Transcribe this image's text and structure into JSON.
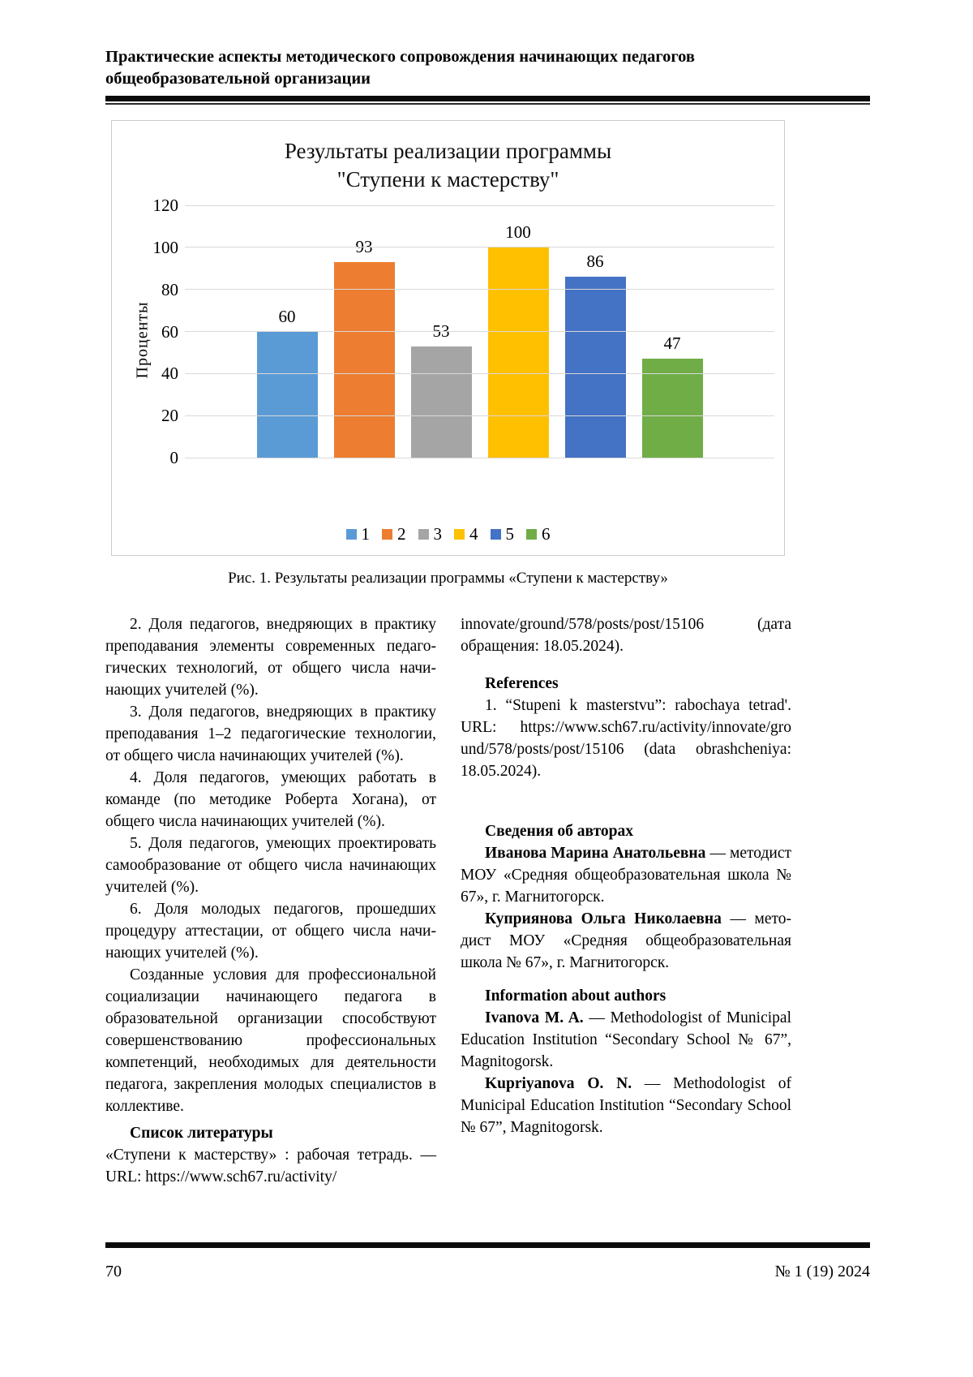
{
  "page": {
    "header_title": "Практические аспекты методического сопровождения начинающих педагогов общеобразовательной организации",
    "footer_page_number": "70",
    "footer_issue": "№ 1 (19) 2024"
  },
  "figure": {
    "caption": "Рис. 1. Результаты реализации программы «Ступени к мастерству»"
  },
  "chart_data": {
    "type": "bar",
    "title_lines": [
      "Результаты реализации программы",
      "\"Ступени к мастерству\""
    ],
    "categories": [
      "1",
      "2",
      "3",
      "4",
      "5",
      "6"
    ],
    "values": [
      60,
      93,
      53,
      100,
      86,
      47
    ],
    "colors": [
      "#5B9BD5",
      "#ED7D31",
      "#A5A5A5",
      "#FFC000",
      "#4472C4",
      "#70AD47"
    ],
    "ylabel": "Проценты",
    "xlabel": "",
    "ylim": [
      0,
      120
    ],
    "ytick_step": 20,
    "grid": true,
    "legend_position": "bottom"
  },
  "left_column": {
    "paragraphs": [
      "2. Доля педагогов, внедряющих в практику преподавания элементы современных педаго­гических технологий, от общего числа начи­нающих учителей (%).",
      "3. Доля педагогов, внедряющих в практику преподавания 1–2 педагогические технологии, от общего числа начинающих учителей (%).",
      "4. Доля педагогов, умеющих работать в команде (по методике Роберта Хогана), от общего числа начинающих учителей (%).",
      "5. Доля педагогов, умеющих проектиро­вать самообразование от общего числа начи­нающих учителей (%).",
      "6. Доля молодых педагогов, прошедших процедуру аттестации, от общего числа начи­нающих учителей (%).",
      "Созданные условия для профессиональной социализации начинающего педагога в образова­тельной организации способствуют совершен­ствованию профессиональных компетенций, не­обходимых для деятельности педагога, закреп­ления молодых специалистов в коллективе."
    ],
    "list_heading": "Список литературы",
    "list_paragraph": "«Ступени к мастерству» : рабочая тет­радь. — URL: https://www.sch67.ru/activity/"
  },
  "right_column": {
    "url_continuation": "innovate/ground/578/posts/post/15106 (дата обращения: 18.05.2024).",
    "references_heading": "References",
    "references_item": "1. “Stupeni k masterstvu”: rabochaya tetrad'. URL: https://www.sch67.ru/activity/innovate/gro​und/578/posts/post/15106 (data obrashcheniya: 18.05.2024).",
    "authors_ru_heading": "Сведения об авторах",
    "authors_ru": [
      {
        "name": "Иванова Марина Анатольевна",
        "rest": " — мето­дист МОУ «Средняя общеобразовательная школа № 67», г. Магнитогорск."
      },
      {
        "name": "Куприянова Ольга Николаевна",
        "rest": " — мето­дист МОУ «Средняя общеобразовательная школа № 67», г. Магнитогорск."
      }
    ],
    "authors_en_heading": "Information about authors",
    "authors_en": [
      {
        "name": "Ivanova M. A.",
        "rest": " — Methodologist of Munici­pal Education Institution “Secondary School № 67”, Magnitogorsk."
      },
      {
        "name": "Kupriyanova O. N.",
        "rest": " — Methodologist of Municipal Education Institution “Secondary School № 67”, Magnitogorsk."
      }
    ]
  }
}
